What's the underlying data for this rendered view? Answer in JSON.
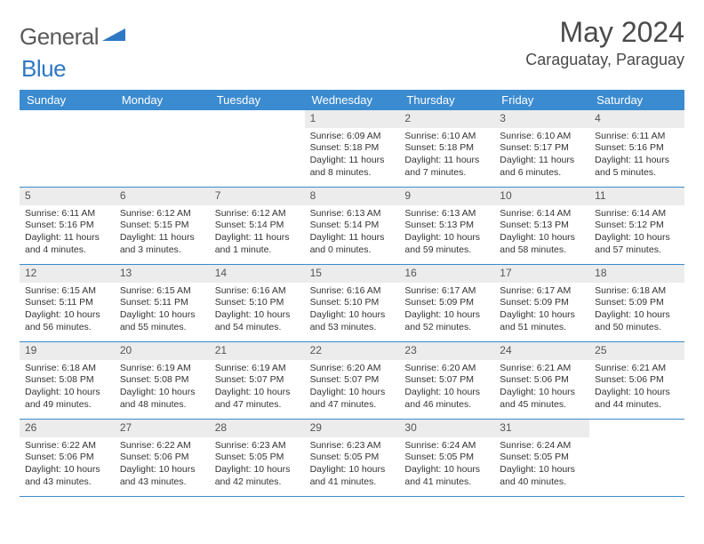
{
  "logo": {
    "text_general": "General",
    "text_blue": "Blue"
  },
  "header": {
    "month_title": "May 2024",
    "location": "Caraguatay, Paraguay"
  },
  "colors": {
    "header_bg": "#3b8bd0",
    "header_text": "#ffffff",
    "daynum_bg": "#ececec",
    "border": "#3b8bd0",
    "logo_gray": "#5a5a5a",
    "logo_blue": "#2f78c3"
  },
  "days_of_week": [
    "Sunday",
    "Monday",
    "Tuesday",
    "Wednesday",
    "Thursday",
    "Friday",
    "Saturday"
  ],
  "weeks": [
    [
      {
        "n": "",
        "sr": "",
        "ss": "",
        "dl": ""
      },
      {
        "n": "",
        "sr": "",
        "ss": "",
        "dl": ""
      },
      {
        "n": "",
        "sr": "",
        "ss": "",
        "dl": ""
      },
      {
        "n": "1",
        "sr": "6:09 AM",
        "ss": "5:18 PM",
        "dl": "11 hours and 8 minutes."
      },
      {
        "n": "2",
        "sr": "6:10 AM",
        "ss": "5:18 PM",
        "dl": "11 hours and 7 minutes."
      },
      {
        "n": "3",
        "sr": "6:10 AM",
        "ss": "5:17 PM",
        "dl": "11 hours and 6 minutes."
      },
      {
        "n": "4",
        "sr": "6:11 AM",
        "ss": "5:16 PM",
        "dl": "11 hours and 5 minutes."
      }
    ],
    [
      {
        "n": "5",
        "sr": "6:11 AM",
        "ss": "5:16 PM",
        "dl": "11 hours and 4 minutes."
      },
      {
        "n": "6",
        "sr": "6:12 AM",
        "ss": "5:15 PM",
        "dl": "11 hours and 3 minutes."
      },
      {
        "n": "7",
        "sr": "6:12 AM",
        "ss": "5:14 PM",
        "dl": "11 hours and 1 minute."
      },
      {
        "n": "8",
        "sr": "6:13 AM",
        "ss": "5:14 PM",
        "dl": "11 hours and 0 minutes."
      },
      {
        "n": "9",
        "sr": "6:13 AM",
        "ss": "5:13 PM",
        "dl": "10 hours and 59 minutes."
      },
      {
        "n": "10",
        "sr": "6:14 AM",
        "ss": "5:13 PM",
        "dl": "10 hours and 58 minutes."
      },
      {
        "n": "11",
        "sr": "6:14 AM",
        "ss": "5:12 PM",
        "dl": "10 hours and 57 minutes."
      }
    ],
    [
      {
        "n": "12",
        "sr": "6:15 AM",
        "ss": "5:11 PM",
        "dl": "10 hours and 56 minutes."
      },
      {
        "n": "13",
        "sr": "6:15 AM",
        "ss": "5:11 PM",
        "dl": "10 hours and 55 minutes."
      },
      {
        "n": "14",
        "sr": "6:16 AM",
        "ss": "5:10 PM",
        "dl": "10 hours and 54 minutes."
      },
      {
        "n": "15",
        "sr": "6:16 AM",
        "ss": "5:10 PM",
        "dl": "10 hours and 53 minutes."
      },
      {
        "n": "16",
        "sr": "6:17 AM",
        "ss": "5:09 PM",
        "dl": "10 hours and 52 minutes."
      },
      {
        "n": "17",
        "sr": "6:17 AM",
        "ss": "5:09 PM",
        "dl": "10 hours and 51 minutes."
      },
      {
        "n": "18",
        "sr": "6:18 AM",
        "ss": "5:09 PM",
        "dl": "10 hours and 50 minutes."
      }
    ],
    [
      {
        "n": "19",
        "sr": "6:18 AM",
        "ss": "5:08 PM",
        "dl": "10 hours and 49 minutes."
      },
      {
        "n": "20",
        "sr": "6:19 AM",
        "ss": "5:08 PM",
        "dl": "10 hours and 48 minutes."
      },
      {
        "n": "21",
        "sr": "6:19 AM",
        "ss": "5:07 PM",
        "dl": "10 hours and 47 minutes."
      },
      {
        "n": "22",
        "sr": "6:20 AM",
        "ss": "5:07 PM",
        "dl": "10 hours and 47 minutes."
      },
      {
        "n": "23",
        "sr": "6:20 AM",
        "ss": "5:07 PM",
        "dl": "10 hours and 46 minutes."
      },
      {
        "n": "24",
        "sr": "6:21 AM",
        "ss": "5:06 PM",
        "dl": "10 hours and 45 minutes."
      },
      {
        "n": "25",
        "sr": "6:21 AM",
        "ss": "5:06 PM",
        "dl": "10 hours and 44 minutes."
      }
    ],
    [
      {
        "n": "26",
        "sr": "6:22 AM",
        "ss": "5:06 PM",
        "dl": "10 hours and 43 minutes."
      },
      {
        "n": "27",
        "sr": "6:22 AM",
        "ss": "5:06 PM",
        "dl": "10 hours and 43 minutes."
      },
      {
        "n": "28",
        "sr": "6:23 AM",
        "ss": "5:05 PM",
        "dl": "10 hours and 42 minutes."
      },
      {
        "n": "29",
        "sr": "6:23 AM",
        "ss": "5:05 PM",
        "dl": "10 hours and 41 minutes."
      },
      {
        "n": "30",
        "sr": "6:24 AM",
        "ss": "5:05 PM",
        "dl": "10 hours and 41 minutes."
      },
      {
        "n": "31",
        "sr": "6:24 AM",
        "ss": "5:05 PM",
        "dl": "10 hours and 40 minutes."
      },
      {
        "n": "",
        "sr": "",
        "ss": "",
        "dl": ""
      }
    ]
  ],
  "labels": {
    "sunrise": "Sunrise:",
    "sunset": "Sunset:",
    "daylight": "Daylight:"
  }
}
